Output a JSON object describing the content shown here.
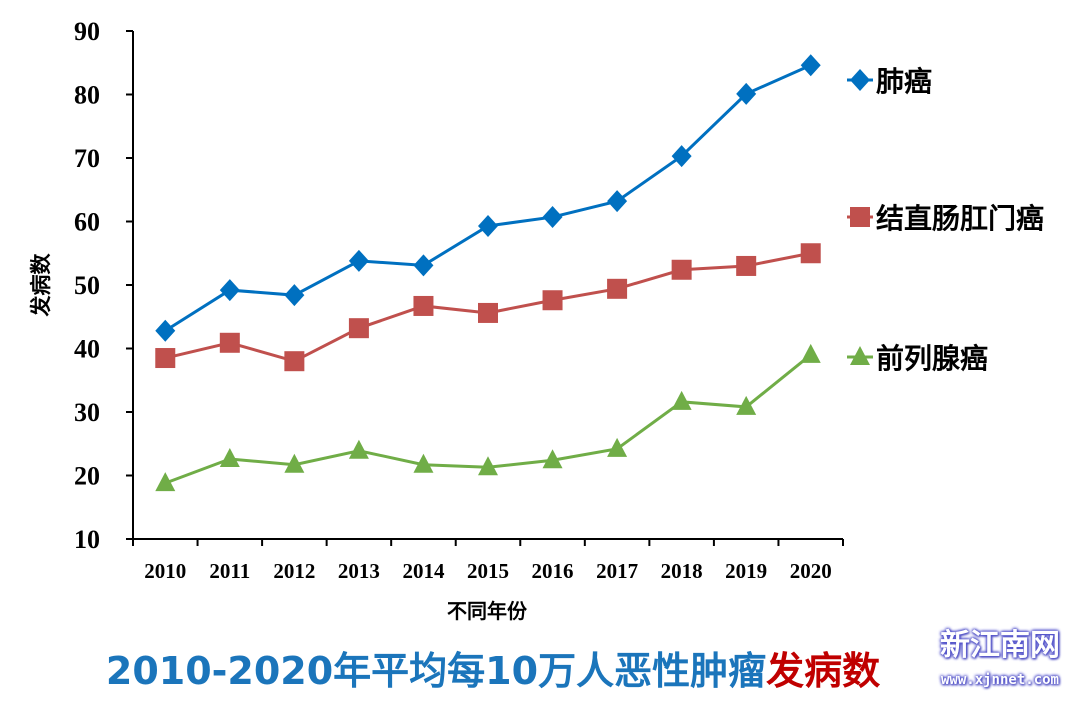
{
  "chart_data": {
    "type": "line",
    "title": "2010-2020年平均每10万人恶性肿瘤",
    "title_highlight": "发病数",
    "xlabel": "不同年份",
    "ylabel": "发病数",
    "ylim": [
      10,
      90
    ],
    "yticks": [
      10,
      20,
      30,
      40,
      50,
      60,
      70,
      80,
      90
    ],
    "grid": false,
    "legend_placement": "right",
    "categories": [
      "2010",
      "2011",
      "2012",
      "2013",
      "2014",
      "2015",
      "2016",
      "2017",
      "2018",
      "2019",
      "2020"
    ],
    "series": [
      {
        "name": "肺癌",
        "color": "#0070c0",
        "marker": "diamond",
        "values": [
          42.8,
          49.2,
          48.4,
          53.8,
          53.1,
          59.3,
          60.7,
          63.2,
          70.3,
          80.1,
          84.6
        ]
      },
      {
        "name": "结直肠肛门癌",
        "color": "#c0504d",
        "marker": "square",
        "values": [
          38.5,
          40.9,
          38.0,
          43.2,
          46.7,
          45.6,
          47.6,
          49.4,
          52.4,
          53.0,
          55.0
        ]
      },
      {
        "name": "前列腺癌",
        "color": "#70ad47",
        "marker": "triangle",
        "values": [
          18.8,
          22.6,
          21.7,
          23.9,
          21.7,
          21.3,
          22.4,
          24.2,
          31.6,
          30.8,
          39.0
        ]
      }
    ]
  },
  "watermark": {
    "name": "新江南网",
    "url": "www.xjnnet.com"
  }
}
